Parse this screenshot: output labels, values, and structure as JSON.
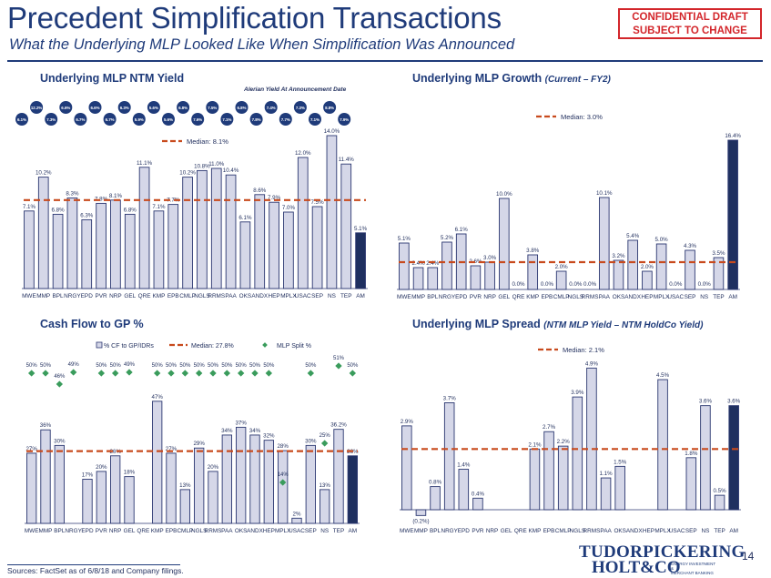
{
  "header": {
    "title": "Precedent Simplification Transactions",
    "subtitle": "What the Underlying MLP Looked Like When Simplification Was Announced",
    "badge_line1": "CONFIDENTIAL DRAFT",
    "badge_line2": "SUBJECT TO CHANGE"
  },
  "footer": {
    "sources": "Sources: FactSet as of 6/8/18 and Company filings.",
    "page_number": "14",
    "logo_line1": "TUDORPICKERING",
    "logo_line2": "HOLT&CO",
    "logo_tag1": "ENERGY INVESTMENT &",
    "logo_tag2": "MERCHANT BANKING"
  },
  "colors": {
    "bar": "#d5d7e8",
    "bar_edge": "#2b3770",
    "highlight": "#1f3060",
    "median": "#c84a1d",
    "split": "#3a9c5c",
    "bubble": "#1f3b7a"
  },
  "chart_data": [
    {
      "id": "yield",
      "type": "bar",
      "title": "Underlying MLP NTM Yield",
      "title_suffix": "",
      "annotation": "Alerian Yield At Announcement Date",
      "categories": [
        "MWE",
        "MMP",
        "BPL",
        "NRGY",
        "EPD",
        "PVR",
        "NRP",
        "GEL",
        "QRE",
        "KMP",
        "EPB",
        "CMLP",
        "NGLS",
        "RRMS",
        "PAA",
        "OKS",
        "ANDX",
        "HEP",
        "MPLX",
        "USAC",
        "SEP",
        "NS",
        "TEP",
        "AM"
      ],
      "values": [
        7.1,
        10.2,
        6.8,
        8.3,
        6.3,
        7.8,
        8.1,
        6.8,
        11.1,
        7.1,
        7.7,
        10.2,
        10.8,
        11.0,
        10.4,
        6.1,
        8.6,
        7.9,
        7.0,
        12.0,
        7.5,
        14.0,
        11.4,
        5.1
      ],
      "labels": [
        "7.1%",
        "10.2%",
        "6.8%",
        "8.3%",
        "6.3%",
        "7.8%",
        "8.1%",
        "6.8%",
        "11.1%",
        "7.1%",
        "7.7%",
        "10.2%",
        "10.8%",
        "11.0%",
        "10.4%",
        "6.1%",
        "8.6%",
        "7.9%",
        "7.0%",
        "12.0%",
        "7.5%",
        "14.0%",
        "11.4%",
        "5.1%"
      ],
      "alerian_yield": [
        "6.1%",
        "12.2%",
        "7.3%",
        "6.6%",
        "6.7%",
        "6.6%",
        "6.7%",
        "6.3%",
        "5.9%",
        "5.6%",
        "5.6%",
        "6.8%",
        "7.6%",
        "7.5%",
        "7.1%",
        "6.8%",
        "7.8%",
        "7.4%",
        "7.7%",
        "7.3%",
        "7.1%",
        "8.8%",
        "7.9%"
      ],
      "median": 8.1,
      "median_label": "Median: 8.1%",
      "ylim": [
        0,
        14.5
      ],
      "highlight": "AM"
    },
    {
      "id": "growth",
      "type": "bar",
      "title": "Underlying MLP Growth",
      "title_suffix": "(Current – FY2)",
      "categories": [
        "MWE",
        "MMP",
        "BPL",
        "NRGY",
        "EPD",
        "PVR",
        "NRP",
        "GEL",
        "QRE",
        "KMP",
        "EPB",
        "CMLP",
        "NGLS",
        "RRMS",
        "PAA",
        "OKS",
        "ANDX",
        "HEP",
        "MPLX",
        "USAC",
        "SEP",
        "NS",
        "TEP",
        "AM"
      ],
      "values": [
        5.1,
        2.4,
        2.4,
        5.2,
        6.1,
        2.6,
        3.0,
        10.0,
        0.0,
        3.8,
        0.0,
        2.0,
        0.0,
        0.0,
        10.1,
        3.2,
        5.4,
        2.0,
        5.0,
        0.0,
        4.3,
        0.0,
        3.5,
        16.4
      ],
      "labels": [
        "5.1%",
        "2.4%",
        "2.4%",
        "5.2%",
        "6.1%",
        "2.6%",
        "3.0%",
        "10.0%",
        "0.0%",
        "3.8%",
        "0.0%",
        "2.0%",
        "0.0%",
        "0.0%",
        "10.1%",
        "3.2%",
        "5.4%",
        "2.0%",
        "5.0%",
        "0.0%",
        "4.3%",
        "0.0%",
        "3.5%",
        "16.4%"
      ],
      "median": 3.0,
      "median_label": "Median: 3.0%",
      "ylim": [
        0,
        17.2
      ],
      "highlight": "AM"
    },
    {
      "id": "cashflow",
      "type": "bar",
      "title": "Cash Flow to GP %",
      "title_suffix": "",
      "legend_series": "% CF to GP/IDRs",
      "legend_split": "MLP Split %",
      "categories": [
        "MWE",
        "MMP",
        "BPL",
        "NRGY",
        "EPD",
        "PVR",
        "NRP",
        "GEL",
        "QRE",
        "KMP",
        "EPB",
        "CMLP",
        "NGLS",
        "RRMS",
        "PAA",
        "OKS",
        "ANDX",
        "HEP",
        "MPLX",
        "USAC",
        "SEP",
        "NS",
        "TEP",
        "AM"
      ],
      "values": [
        27,
        36,
        30,
        0,
        17,
        20,
        26,
        18,
        0,
        47,
        27,
        13,
        29,
        20,
        34,
        37,
        34,
        32,
        28,
        2,
        30,
        13,
        36.2,
        26
      ],
      "labels": [
        "27%",
        "36%",
        "30%",
        "",
        "17%",
        "20%",
        "26%",
        "18%",
        "",
        "47%",
        "27%",
        "13%",
        "29%",
        "20%",
        "34%",
        "37%",
        "34%",
        "32%",
        "28%",
        "2%",
        "30%",
        "13%",
        "36.2%",
        "26%"
      ],
      "split": [
        50,
        50,
        46,
        49,
        null,
        50,
        50,
        49,
        null,
        50,
        50,
        50,
        50,
        50,
        50,
        50,
        50,
        50,
        14,
        null,
        50,
        25,
        51,
        50
      ],
      "split_labels": [
        "50%",
        "50%",
        "46%",
        "49%",
        "",
        "50%",
        "50%",
        "49%",
        "",
        "50%",
        "50%",
        "50%",
        "50%",
        "50%",
        "50%",
        "50%",
        "50%",
        "50%",
        "14%",
        "",
        "50%",
        "25%",
        "51%",
        "50%"
      ],
      "median": 27.8,
      "median_label": "Median: 27.8%",
      "ylim": [
        0,
        55
      ],
      "highlight": "AM"
    },
    {
      "id": "spread",
      "type": "bar",
      "title": "Underlying MLP Spread",
      "title_suffix": "(NTM MLP Yield – NTM HoldCo Yield)",
      "categories": [
        "MWE",
        "MMP",
        "BPL",
        "NRGY",
        "EPD",
        "PVR",
        "NRP",
        "GEL",
        "QRE",
        "KMP",
        "EPB",
        "CMLP",
        "NGLS",
        "RRMS",
        "PAA",
        "OKS",
        "ANDX",
        "HEP",
        "MPLX",
        "USAC",
        "SEP",
        "NS",
        "TEP",
        "AM"
      ],
      "values": [
        2.9,
        -0.2,
        0.8,
        3.7,
        1.4,
        0.4,
        0,
        0,
        0,
        2.1,
        2.7,
        2.2,
        3.9,
        4.9,
        1.1,
        1.5,
        0,
        0,
        4.5,
        0,
        1.8,
        3.6,
        0.5,
        3.6
      ],
      "labels": [
        "2.9%",
        "(0.2%)",
        "0.8%",
        "3.7%",
        "1.4%",
        "0.4%",
        "",
        "",
        "",
        "2.1%",
        "2.7%",
        "2.2%",
        "3.9%",
        "4.9%",
        "1.1%",
        "1.5%",
        "",
        "",
        "4.5%",
        "",
        "1.8%",
        "3.6%",
        "0.5%",
        "3.6%"
      ],
      "median": 2.1,
      "median_label": "Median: 2.1%",
      "ylim": [
        -0.3,
        5.1
      ],
      "highlight": "AM"
    }
  ]
}
